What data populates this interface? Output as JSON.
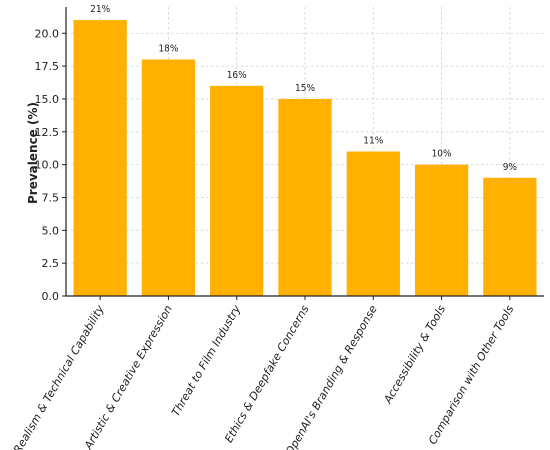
{
  "chart_data": {
    "type": "bar",
    "title": "",
    "xlabel": "",
    "ylabel": "Prevalence (%)",
    "categories": [
      "Realism & Technical Capability",
      "Artistic & Creative Expression",
      "Threat to Film Industry",
      "Ethics & Deepfake Concerns",
      "OpenAI's Branding & Response",
      "Accessibility & Tools",
      "Comparison with Other Tools"
    ],
    "values": [
      21,
      18,
      16,
      15,
      11,
      10,
      9
    ],
    "data_labels": [
      "21%",
      "18%",
      "16%",
      "15%",
      "11%",
      "10%",
      "9%"
    ],
    "ylim": [
      0,
      22
    ],
    "yticks": [
      0.0,
      2.5,
      5.0,
      7.5,
      10.0,
      12.5,
      15.0,
      17.5,
      20.0
    ],
    "ytick_labels": [
      "0.0",
      "2.5",
      "5.0",
      "7.5",
      "10.0",
      "12.5",
      "15.0",
      "17.5",
      "20.0"
    ],
    "grid": true,
    "bar_color": "#FFB000"
  }
}
